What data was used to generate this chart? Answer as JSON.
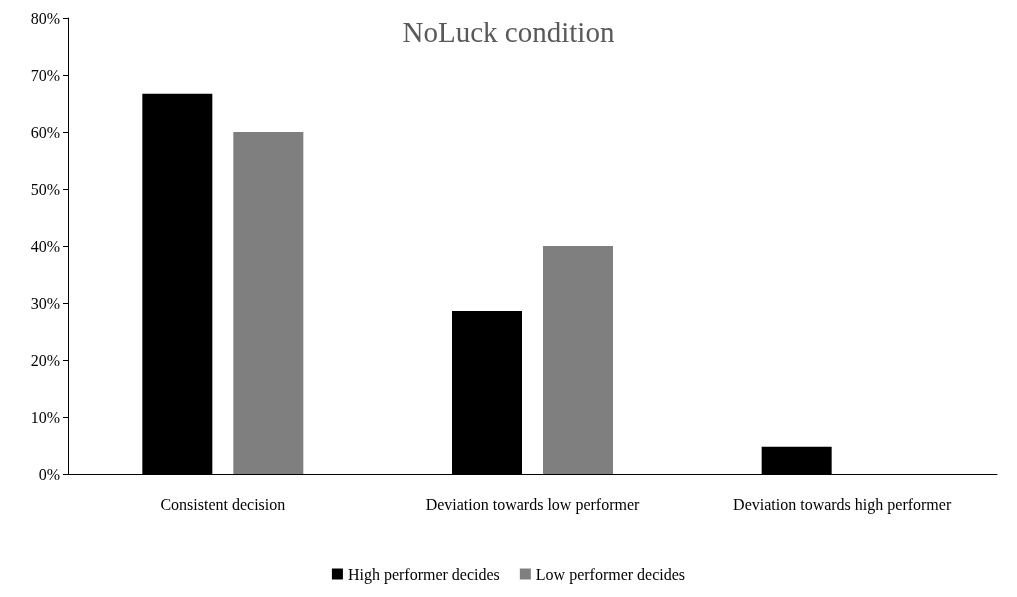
{
  "chart_data": {
    "type": "bar",
    "title": "NoLuck condition",
    "categories": [
      "Consistent decision",
      "Deviation towards low performer",
      "Deviation towards high performer"
    ],
    "series": [
      {
        "name": "High performer decides",
        "color": "#000000",
        "values": [
          66.7,
          28.6,
          4.8
        ]
      },
      {
        "name": "Low performer decides",
        "color": "#7f7f7f",
        "values": [
          60,
          40,
          0
        ]
      }
    ],
    "ylim": [
      0,
      80
    ],
    "yticks": [
      {
        "value": 0,
        "label": "0%"
      },
      {
        "value": 10,
        "label": "10%"
      },
      {
        "value": 20,
        "label": "20%"
      },
      {
        "value": 30,
        "label": "30%"
      },
      {
        "value": 40,
        "label": "40%"
      },
      {
        "value": 50,
        "label": "50%"
      },
      {
        "value": 60,
        "label": "60%"
      },
      {
        "value": 70,
        "label": "70%"
      },
      {
        "value": 80,
        "label": "80%"
      }
    ],
    "legend": "bottom"
  }
}
